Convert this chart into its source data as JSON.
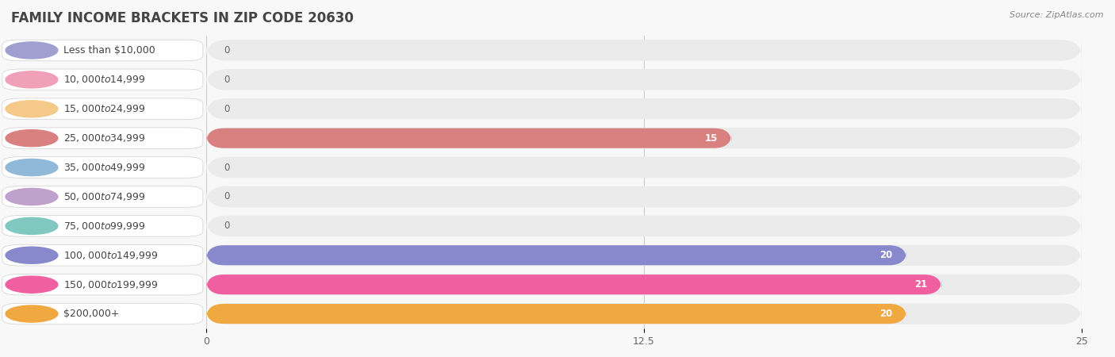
{
  "title": "FAMILY INCOME BRACKETS IN ZIP CODE 20630",
  "source": "Source: ZipAtlas.com",
  "categories": [
    "Less than $10,000",
    "$10,000 to $14,999",
    "$15,000 to $24,999",
    "$25,000 to $34,999",
    "$35,000 to $49,999",
    "$50,000 to $74,999",
    "$75,000 to $99,999",
    "$100,000 to $149,999",
    "$150,000 to $199,999",
    "$200,000+"
  ],
  "values": [
    0,
    0,
    0,
    15,
    0,
    0,
    0,
    20,
    21,
    20
  ],
  "bar_colors": [
    "#a0a0d0",
    "#f0a0b8",
    "#f5c98a",
    "#d98080",
    "#90b8d8",
    "#c0a0cc",
    "#80c8c0",
    "#8888cc",
    "#f060a0",
    "#f0a840"
  ],
  "xlim": [
    0,
    25
  ],
  "xticks": [
    0,
    12.5,
    25
  ],
  "title_fontsize": 12,
  "label_fontsize": 9,
  "value_fontsize": 8.5,
  "bar_height": 0.68
}
